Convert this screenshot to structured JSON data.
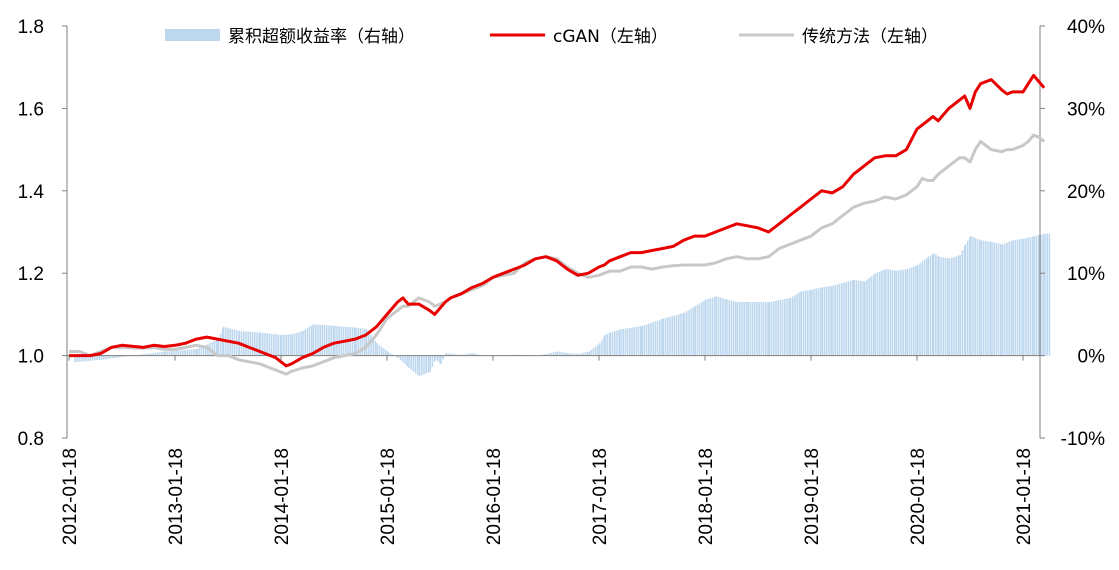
{
  "chart_data": {
    "type": "line",
    "title": "",
    "legend_position": "top",
    "x_tick_labels": [
      "2012-01-18",
      "2013-01-18",
      "2014-01-18",
      "2015-01-18",
      "2016-01-18",
      "2017-01-18",
      "2018-01-18",
      "2019-01-18",
      "2020-01-18",
      "2021-01-18"
    ],
    "left_axis": {
      "ylim": [
        0.8,
        1.8
      ],
      "ticks": [
        "0.8",
        "1.0",
        "1.2",
        "1.4",
        "1.6",
        "1.8"
      ]
    },
    "right_axis": {
      "ylim": [
        -10,
        40
      ],
      "ticks": [
        "-10%",
        "0%",
        "10%",
        "20%",
        "30%",
        "40%"
      ]
    },
    "series": [
      {
        "name": "累积超额收益率（右轴）",
        "kind": "bar",
        "axis": "right",
        "unit": "%",
        "color": "#bdd7ee",
        "x": [
          2012.05,
          2012.3,
          2012.6,
          2012.9,
          2013.2,
          2013.4,
          2013.45,
          2013.6,
          2013.8,
          2014.0,
          2014.1,
          2014.2,
          2014.3,
          2014.5,
          2014.7,
          2014.8,
          2014.9,
          2015.0,
          2015.1,
          2015.2,
          2015.3,
          2015.4,
          2015.45,
          2015.5,
          2015.55,
          2015.6,
          2015.7,
          2015.8,
          2015.9,
          2016.0,
          2016.2,
          2016.4,
          2016.5,
          2016.6,
          2016.7,
          2016.8,
          2016.9,
          2017.0,
          2017.05,
          2017.1,
          2017.2,
          2017.4,
          2017.6,
          2017.8,
          2017.9,
          2018.0,
          2018.1,
          2018.2,
          2018.3,
          2018.4,
          2018.6,
          2018.8,
          2018.9,
          2019.0,
          2019.1,
          2019.2,
          2019.4,
          2019.5,
          2019.6,
          2019.7,
          2019.8,
          2019.9,
          2020.0,
          2020.1,
          2020.15,
          2020.2,
          2020.3,
          2020.4,
          2020.45,
          2020.5,
          2020.6,
          2020.7,
          2020.8,
          2020.9,
          2021.0,
          2021.1,
          2021.2
        ],
        "values": [
          -0.8,
          -0.5,
          0.0,
          0.5,
          0.8,
          2.0,
          3.5,
          3.0,
          2.8,
          2.5,
          2.6,
          3.0,
          3.8,
          3.6,
          3.4,
          3.2,
          1.5,
          0.5,
          -0.3,
          -1.5,
          -2.5,
          -2.0,
          -0.5,
          -1.0,
          0.3,
          0.2,
          0.1,
          0.3,
          0.0,
          0.0,
          0.1,
          0.0,
          0.2,
          0.5,
          0.3,
          0.2,
          0.5,
          1.5,
          2.5,
          2.8,
          3.2,
          3.6,
          4.5,
          5.2,
          6.0,
          6.8,
          7.2,
          6.8,
          6.5,
          6.5,
          6.5,
          7.0,
          7.8,
          8.0,
          8.3,
          8.5,
          9.2,
          9.0,
          10.0,
          10.5,
          10.3,
          10.5,
          11.0,
          12.0,
          12.4,
          12.0,
          11.8,
          12.2,
          13.5,
          14.5,
          14.0,
          13.8,
          13.5,
          14.0,
          14.2,
          14.5,
          14.8
        ]
      },
      {
        "name": "cGAN（左轴）",
        "kind": "line",
        "axis": "left",
        "color": "#e80000",
        "x": [
          2012.0,
          2012.1,
          2012.2,
          2012.3,
          2012.4,
          2012.5,
          2012.7,
          2012.8,
          2012.9,
          2013.0,
          2013.1,
          2013.2,
          2013.3,
          2013.4,
          2013.5,
          2013.6,
          2013.7,
          2013.8,
          2013.9,
          2013.95,
          2014.0,
          2014.05,
          2014.1,
          2014.2,
          2014.3,
          2014.4,
          2014.5,
          2014.6,
          2014.7,
          2014.8,
          2014.9,
          2015.0,
          2015.1,
          2015.15,
          2015.2,
          2015.3,
          2015.4,
          2015.45,
          2015.5,
          2015.55,
          2015.6,
          2015.7,
          2015.8,
          2015.9,
          2016.0,
          2016.1,
          2016.2,
          2016.3,
          2016.4,
          2016.5,
          2016.6,
          2016.7,
          2016.8,
          2016.9,
          2017.0,
          2017.05,
          2017.1,
          2017.2,
          2017.3,
          2017.4,
          2017.5,
          2017.6,
          2017.7,
          2017.8,
          2017.9,
          2018.0,
          2018.1,
          2018.2,
          2018.3,
          2018.4,
          2018.5,
          2018.6,
          2018.7,
          2018.8,
          2018.9,
          2019.0,
          2019.1,
          2019.2,
          2019.3,
          2019.4,
          2019.5,
          2019.6,
          2019.7,
          2019.8,
          2019.9,
          2020.0,
          2020.05,
          2020.1,
          2020.15,
          2020.2,
          2020.3,
          2020.4,
          2020.45,
          2020.5,
          2020.55,
          2020.6,
          2020.7,
          2020.8,
          2020.85,
          2020.9,
          2021.0,
          2021.05,
          2021.1,
          2021.15,
          2021.2
        ],
        "values": [
          1.0,
          1.0,
          1.0,
          1.005,
          1.02,
          1.025,
          1.02,
          1.025,
          1.022,
          1.025,
          1.03,
          1.04,
          1.045,
          1.04,
          1.035,
          1.03,
          1.02,
          1.01,
          1.0,
          0.995,
          0.985,
          0.975,
          0.98,
          0.995,
          1.005,
          1.02,
          1.03,
          1.035,
          1.04,
          1.05,
          1.07,
          1.1,
          1.13,
          1.14,
          1.125,
          1.125,
          1.11,
          1.1,
          1.115,
          1.13,
          1.14,
          1.15,
          1.165,
          1.175,
          1.19,
          1.2,
          1.21,
          1.22,
          1.235,
          1.24,
          1.23,
          1.21,
          1.195,
          1.2,
          1.215,
          1.22,
          1.23,
          1.24,
          1.25,
          1.25,
          1.255,
          1.26,
          1.265,
          1.28,
          1.29,
          1.29,
          1.3,
          1.31,
          1.32,
          1.315,
          1.31,
          1.3,
          1.32,
          1.34,
          1.36,
          1.38,
          1.4,
          1.395,
          1.41,
          1.44,
          1.46,
          1.48,
          1.485,
          1.485,
          1.5,
          1.55,
          1.56,
          1.57,
          1.58,
          1.57,
          1.6,
          1.62,
          1.63,
          1.6,
          1.64,
          1.66,
          1.67,
          1.645,
          1.635,
          1.64,
          1.64,
          1.66,
          1.68,
          1.665,
          1.65
        ]
      },
      {
        "name": "传统方法（左轴）",
        "kind": "line",
        "axis": "left",
        "color": "#c8c8c8",
        "x": [
          2012.0,
          2012.1,
          2012.2,
          2012.3,
          2012.4,
          2012.5,
          2012.7,
          2012.8,
          2012.9,
          2013.0,
          2013.1,
          2013.2,
          2013.3,
          2013.4,
          2013.5,
          2013.6,
          2013.7,
          2013.8,
          2013.9,
          2013.95,
          2014.0,
          2014.05,
          2014.1,
          2014.2,
          2014.3,
          2014.4,
          2014.5,
          2014.6,
          2014.7,
          2014.8,
          2014.9,
          2015.0,
          2015.1,
          2015.15,
          2015.2,
          2015.3,
          2015.4,
          2015.45,
          2015.5,
          2015.55,
          2015.6,
          2015.7,
          2015.8,
          2015.9,
          2016.0,
          2016.1,
          2016.2,
          2016.3,
          2016.4,
          2016.5,
          2016.6,
          2016.7,
          2016.8,
          2016.9,
          2017.0,
          2017.05,
          2017.1,
          2017.2,
          2017.3,
          2017.4,
          2017.5,
          2017.6,
          2017.7,
          2017.8,
          2017.9,
          2018.0,
          2018.1,
          2018.2,
          2018.3,
          2018.4,
          2018.5,
          2018.6,
          2018.7,
          2018.8,
          2018.9,
          2019.0,
          2019.1,
          2019.2,
          2019.3,
          2019.4,
          2019.5,
          2019.6,
          2019.7,
          2019.8,
          2019.9,
          2020.0,
          2020.05,
          2020.1,
          2020.15,
          2020.2,
          2020.3,
          2020.4,
          2020.45,
          2020.5,
          2020.55,
          2020.6,
          2020.7,
          2020.8,
          2020.85,
          2020.9,
          2021.0,
          2021.05,
          2021.1,
          2021.15,
          2021.2
        ],
        "values": [
          1.01,
          1.01,
          1.0,
          1.01,
          1.02,
          1.02,
          1.018,
          1.02,
          1.015,
          1.015,
          1.02,
          1.025,
          1.02,
          1.0,
          1.0,
          0.99,
          0.985,
          0.98,
          0.97,
          0.965,
          0.96,
          0.955,
          0.962,
          0.97,
          0.975,
          0.985,
          0.995,
          1.0,
          1.005,
          1.02,
          1.05,
          1.09,
          1.11,
          1.12,
          1.12,
          1.14,
          1.13,
          1.12,
          1.125,
          1.13,
          1.14,
          1.15,
          1.16,
          1.17,
          1.19,
          1.195,
          1.2,
          1.225,
          1.235,
          1.24,
          1.235,
          1.215,
          1.2,
          1.19,
          1.195,
          1.2,
          1.205,
          1.205,
          1.215,
          1.215,
          1.21,
          1.215,
          1.218,
          1.22,
          1.22,
          1.22,
          1.225,
          1.235,
          1.24,
          1.235,
          1.235,
          1.24,
          1.26,
          1.27,
          1.28,
          1.29,
          1.31,
          1.32,
          1.34,
          1.36,
          1.37,
          1.375,
          1.385,
          1.38,
          1.39,
          1.41,
          1.43,
          1.425,
          1.425,
          1.44,
          1.46,
          1.48,
          1.48,
          1.47,
          1.5,
          1.52,
          1.5,
          1.495,
          1.5,
          1.5,
          1.51,
          1.52,
          1.535,
          1.53,
          1.52
        ]
      }
    ]
  }
}
